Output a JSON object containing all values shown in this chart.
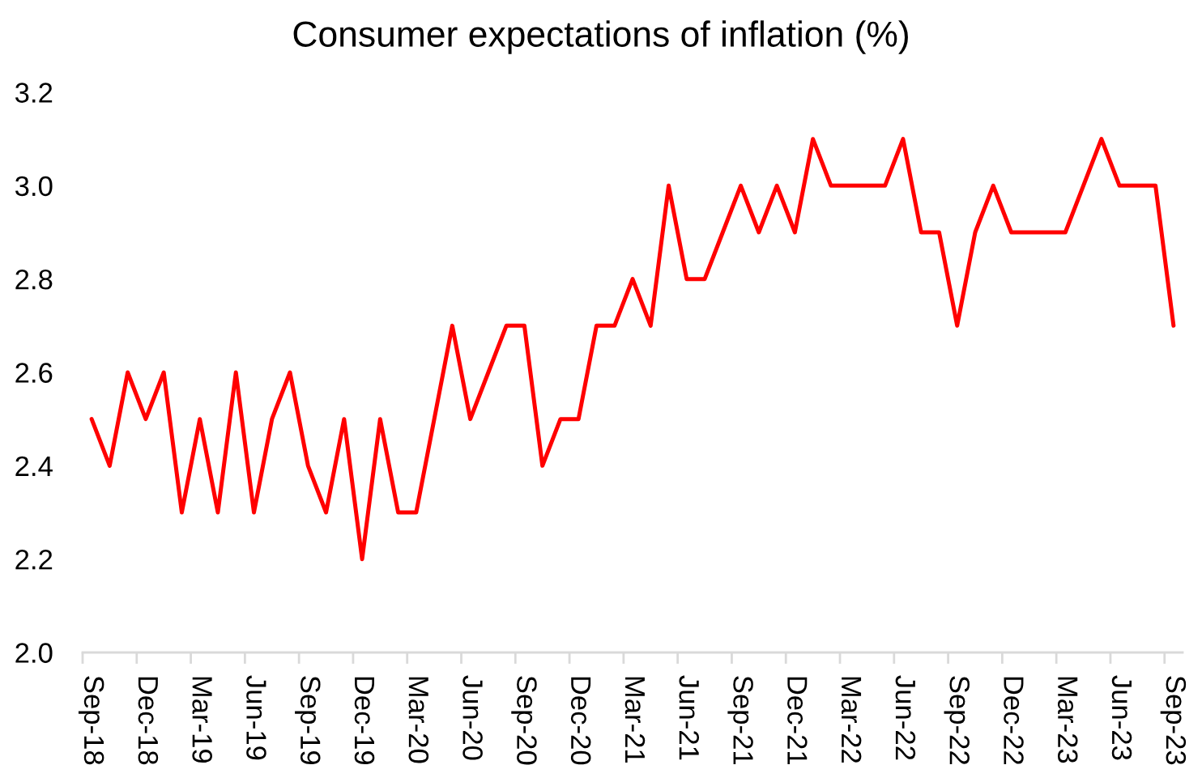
{
  "chart_data": {
    "type": "line",
    "title": "Consumer expectations of inflation (%)",
    "categories": [
      "Sep-18",
      null,
      null,
      "Dec-18",
      null,
      null,
      "Mar-19",
      null,
      null,
      "Jun-19",
      null,
      null,
      "Sep-19",
      null,
      null,
      "Dec-19",
      null,
      null,
      "Mar-20",
      null,
      null,
      "Jun-20",
      null,
      null,
      "Sep-20",
      null,
      null,
      "Dec-20",
      null,
      null,
      "Mar-21",
      null,
      null,
      "Jun-21",
      null,
      null,
      "Sep-21",
      null,
      null,
      "Dec-21",
      null,
      null,
      "Mar-22",
      null,
      null,
      "Jun-22",
      null,
      null,
      "Sep-22",
      null,
      null,
      "Dec-22",
      null,
      null,
      "Mar-23",
      null,
      null,
      "Jun-23",
      null,
      null,
      "Sep-23"
    ],
    "series": [
      {
        "color": "#ff0000",
        "values": [
          2.5,
          2.4,
          2.6,
          2.5,
          2.6,
          2.3,
          2.5,
          2.3,
          2.6,
          2.3,
          2.5,
          2.6,
          2.4,
          2.3,
          2.5,
          2.2,
          2.5,
          2.3,
          2.3,
          2.5,
          2.7,
          2.5,
          2.6,
          2.7,
          2.7,
          2.4,
          2.5,
          2.5,
          2.7,
          2.7,
          2.8,
          2.7,
          3.0,
          2.8,
          2.8,
          2.9,
          3.0,
          2.9,
          3.0,
          2.9,
          3.1,
          3.0,
          3.0,
          3.0,
          3.0,
          3.1,
          2.9,
          2.9,
          2.7,
          2.9,
          3.0,
          2.9,
          2.9,
          2.9,
          2.9,
          3.0,
          3.1,
          3.0,
          3.0,
          3.0,
          2.7
        ]
      }
    ],
    "ylim": [
      2.0,
      3.2
    ],
    "yticks": [
      {
        "value": 2.0,
        "label": "2.0"
      },
      2.2,
      2.4,
      2.6,
      2.8,
      {
        "value": 3.0,
        "label": "3.0"
      },
      3.2
    ],
    "grid": false,
    "marker": "none",
    "line_style": "solid"
  }
}
